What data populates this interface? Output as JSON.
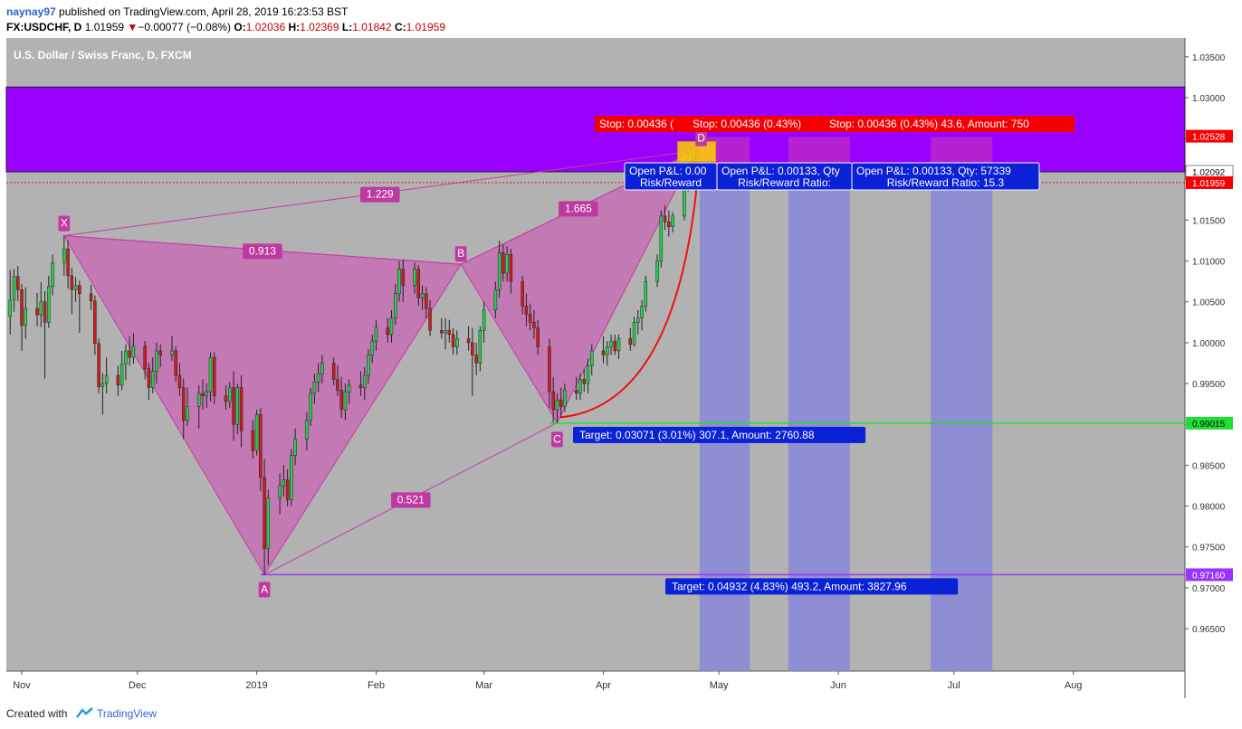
{
  "header": {
    "author": "naynay97",
    "published": "published on TradingView.com, April 28, 2019 16:23:53 BST",
    "symbol": "FX:USDCHF, D",
    "last": "1.01959",
    "change_arrow": "▼",
    "change": "−0.00077 (−0.08%)",
    "open_label": "O:",
    "open": "1.02036",
    "high_label": "H:",
    "high": "1.02369",
    "low_label": "L:",
    "low": "1.01842",
    "close_label": "C:",
    "close": "1.01959"
  },
  "footer": {
    "created_with": "Created with",
    "brand": "TradingView"
  },
  "colors": {
    "background": "#b2b2b2",
    "up": "#23d14a",
    "down": "#cc1d1d",
    "pattern_fill": "#c66fb3",
    "pattern_line": "#c83aa5",
    "zone": "#9900ff",
    "target_line": "#22dd33",
    "target_a": "#9a33ff",
    "projection": "#8a8ad6",
    "label_bg": "#bf3aa0",
    "stop_bg": "#f40000",
    "target_bg": "#0b21d6"
  },
  "chart_data": {
    "type": "candlestick",
    "title": "U.S. Dollar / Swiss Franc, D, FXCM",
    "ylim": [
      0.9598,
      1.0373
    ],
    "y_ticks": [
      "1.03500",
      "1.03000",
      "1.02500",
      "1.02000",
      "1.01500",
      "1.01000",
      "1.00500",
      "1.00000",
      "0.99500",
      "0.99000",
      "0.98500",
      "0.98000",
      "0.97500",
      "0.97000",
      "0.96500"
    ],
    "x_ticks": [
      {
        "label": "Nov",
        "date": "2018-11-01"
      },
      {
        "label": "Dec",
        "date": "2018-12-01"
      },
      {
        "label": "2019",
        "date": "2019-01-01"
      },
      {
        "label": "Feb",
        "date": "2019-02-01"
      },
      {
        "label": "Mar",
        "date": "2019-03-01"
      },
      {
        "label": "Apr",
        "date": "2019-04-01"
      },
      {
        "label": "May",
        "date": "2019-05-01"
      },
      {
        "label": "Jun",
        "date": "2019-06-01"
      },
      {
        "label": "Jul",
        "date": "2019-07-01"
      },
      {
        "label": "Aug",
        "date": "2019-08-01"
      }
    ],
    "xlim": [
      "2018-10-28",
      "2019-08-30"
    ],
    "price_badges": [
      {
        "value": "1.02528",
        "bg": "#f40000"
      },
      {
        "value": "1.02092",
        "bg": "#ffffff",
        "fg": "#111"
      },
      {
        "value": "1.01959",
        "bg": "#f40000"
      },
      {
        "value": "0.99015",
        "bg": "#22dd33",
        "fg": "#111"
      },
      {
        "value": "0.97160",
        "bg": "#9a33ff"
      }
    ],
    "supply_zone": {
      "from": 1.0313,
      "to": 1.02092
    },
    "current_price": 1.01959,
    "target_lines": [
      {
        "value": 0.99015,
        "color": "#22dd33",
        "from": "2019-03-18"
      },
      {
        "value": 0.9716,
        "color": "#9a33ff",
        "from": "2019-01-02"
      }
    ],
    "pattern": {
      "points": [
        {
          "label": "X",
          "date": "2018-11-12",
          "value": 1.0131
        },
        {
          "label": "A",
          "date": "2019-01-03",
          "value": 0.9716
        },
        {
          "label": "B",
          "date": "2019-02-23",
          "value": 1.0096
        },
        {
          "label": "C",
          "date": "2019-03-20",
          "value": 0.9902
        },
        {
          "label": "D",
          "date": "2019-04-25",
          "value": 1.0235
        }
      ],
      "ratios": [
        {
          "label": "1.229",
          "between": [
            "X",
            "D"
          ]
        },
        {
          "label": "0.913",
          "between": [
            "X",
            "B"
          ]
        },
        {
          "label": "1.665",
          "between": [
            "B",
            "D"
          ]
        },
        {
          "label": "0.521",
          "between": [
            "A",
            "C"
          ]
        }
      ]
    },
    "projections": [
      {
        "from": "2019-04-26",
        "to": "2019-05-09"
      },
      {
        "from": "2019-05-19",
        "to": "2019-06-04"
      },
      {
        "from": "2019-06-25",
        "to": "2019-07-11"
      }
    ],
    "stop_labels": [
      "Stop: 0.00436 (",
      "Stop: 0.00436 (0.43%)",
      "Stop: 0.00436 (0.43%) 43.6, Amount: 750"
    ],
    "open_labels": [
      {
        "line1": "Open P&L: 0.00",
        "line2": "Risk/Reward"
      },
      {
        "line1": "Open P&L: 0.00133, Qty",
        "line2": "Risk/Reward Ratio:"
      },
      {
        "line1": "Open P&L: 0.00133, Qty: 57339",
        "line2": "Risk/Reward Ratio: 15.3"
      }
    ],
    "target_labels": [
      "Target: 0.03071 (3.01%) 307.1, Amount: 2760.88",
      "Target: 0.04932 (4.83%) 493.2, Amount: 3827.96"
    ],
    "candles": [
      [
        "2018-10-29",
        1.0032,
        1.0089,
        1.001,
        1.0052
      ],
      [
        "2018-10-30",
        1.0052,
        1.009,
        1.0038,
        1.0081
      ],
      [
        "2018-10-31",
        1.0081,
        1.0094,
        1.0051,
        1.0065
      ],
      [
        "2018-11-01",
        1.0065,
        1.0072,
        0.999,
        1.0021
      ],
      [
        "2018-11-02",
        1.0021,
        1.0068,
        1.0005,
        1.0042
      ],
      [
        "2018-11-05",
        1.0042,
        1.0061,
        1.002,
        1.0034
      ],
      [
        "2018-11-06",
        1.0034,
        1.0074,
        1.0019,
        1.005
      ],
      [
        "2018-11-07",
        1.005,
        1.0063,
        0.9956,
        1.0025
      ],
      [
        "2018-11-08",
        1.0025,
        1.0082,
        1.0018,
        1.0069
      ],
      [
        "2018-11-09",
        1.0069,
        1.0108,
        1.0058,
        1.0098
      ],
      [
        "2018-11-12",
        1.0098,
        1.0131,
        1.0082,
        1.0115
      ],
      [
        "2018-11-13",
        1.0115,
        1.0125,
        1.0066,
        1.0082
      ],
      [
        "2018-11-14",
        1.0082,
        1.0092,
        1.0035,
        1.0065
      ],
      [
        "2018-11-15",
        1.0065,
        1.008,
        1.005,
        1.007
      ],
      [
        "2018-11-16",
        1.007,
        1.0076,
        1.0012,
        1.006
      ],
      [
        "2018-11-19",
        1.006,
        1.0071,
        1.004,
        1.0051
      ],
      [
        "2018-11-20",
        1.0051,
        1.0058,
        0.9985,
        0.9999
      ],
      [
        "2018-11-21",
        0.9999,
        1.0005,
        0.9938,
        0.9946
      ],
      [
        "2018-11-22",
        0.9946,
        0.9963,
        0.9912,
        0.995
      ],
      [
        "2018-11-23",
        0.995,
        0.9982,
        0.9938,
        0.996
      ],
      [
        "2018-11-26",
        0.996,
        0.9972,
        0.9935,
        0.9948
      ],
      [
        "2018-11-27",
        0.9948,
        0.999,
        0.9942,
        0.9974
      ],
      [
        "2018-11-28",
        0.9974,
        0.9998,
        0.9954,
        0.999
      ],
      [
        "2018-11-29",
        0.999,
        1.0008,
        0.9972,
        0.9982
      ],
      [
        "2018-11-30",
        0.9982,
        1.0012,
        0.9974,
        0.9996
      ],
      [
        "2018-12-03",
        0.9996,
        1.0002,
        0.9955,
        0.9968
      ],
      [
        "2018-12-04",
        0.9968,
        0.9975,
        0.993,
        0.9945
      ],
      [
        "2018-12-05",
        0.9945,
        0.9982,
        0.9938,
        0.9965
      ],
      [
        "2018-12-06",
        0.9965,
        1.0,
        0.995,
        0.999
      ],
      [
        "2018-12-07",
        0.999,
        0.9998,
        0.997,
        0.9985
      ],
      [
        "2018-12-10",
        0.9985,
        1.0008,
        0.9978,
        0.999
      ],
      [
        "2018-12-11",
        0.999,
        0.9995,
        0.9952,
        0.996
      ],
      [
        "2018-12-12",
        0.996,
        0.9975,
        0.9935,
        0.9945
      ],
      [
        "2018-12-13",
        0.9945,
        0.9956,
        0.9882,
        0.9905
      ],
      [
        "2018-12-14",
        0.9905,
        0.9945,
        0.9898,
        0.9922
      ],
      [
        "2018-12-17",
        0.9922,
        0.9948,
        0.9895,
        0.9938
      ],
      [
        "2018-12-18",
        0.9938,
        0.9955,
        0.9918,
        0.9935
      ],
      [
        "2018-12-19",
        0.9935,
        0.995,
        0.992,
        0.994
      ],
      [
        "2018-12-20",
        0.994,
        0.9988,
        0.9928,
        0.9982
      ],
      [
        "2018-12-21",
        0.9982,
        0.9988,
        0.9925,
        0.9935
      ],
      [
        "2018-12-24",
        0.9935,
        0.9948,
        0.9918,
        0.9928
      ],
      [
        "2018-12-25",
        0.9928,
        0.9952,
        0.992,
        0.9945
      ],
      [
        "2018-12-26",
        0.9945,
        0.9965,
        0.988,
        0.99
      ],
      [
        "2018-12-27",
        0.99,
        0.995,
        0.9888,
        0.9945
      ],
      [
        "2018-12-28",
        0.9945,
        0.996,
        0.9872,
        0.9892
      ],
      [
        "2018-12-31",
        0.9892,
        0.9905,
        0.9858,
        0.9868
      ],
      [
        "2019-01-01",
        0.9868,
        0.9918,
        0.9862,
        0.9912
      ],
      [
        "2019-01-02",
        0.9912,
        0.992,
        0.9818,
        0.9835
      ],
      [
        "2019-01-03",
        0.9835,
        0.9858,
        0.9716,
        0.9748
      ],
      [
        "2019-01-04",
        0.9748,
        0.982,
        0.9728,
        0.981
      ],
      [
        "2019-01-07",
        0.981,
        0.984,
        0.979,
        0.9825
      ],
      [
        "2019-01-08",
        0.9825,
        0.985,
        0.9812,
        0.9832
      ],
      [
        "2019-01-09",
        0.9832,
        0.9845,
        0.98,
        0.9808
      ],
      [
        "2019-01-10",
        0.9808,
        0.987,
        0.98,
        0.9862
      ],
      [
        "2019-01-11",
        0.9862,
        0.9895,
        0.985,
        0.9882
      ],
      [
        "2019-01-14",
        0.9882,
        0.9915,
        0.9868,
        0.9905
      ],
      [
        "2019-01-15",
        0.9905,
        0.9945,
        0.9898,
        0.9938
      ],
      [
        "2019-01-16",
        0.9938,
        0.9962,
        0.9925,
        0.9952
      ],
      [
        "2019-01-17",
        0.9952,
        0.9975,
        0.994,
        0.9962
      ],
      [
        "2019-01-18",
        0.9962,
        0.9985,
        0.995,
        0.9975
      ],
      [
        "2019-01-21",
        0.9975,
        0.9982,
        0.9948,
        0.9955
      ],
      [
        "2019-01-22",
        0.9955,
        0.9972,
        0.9935,
        0.9942
      ],
      [
        "2019-01-23",
        0.9942,
        0.9958,
        0.9908,
        0.9918
      ],
      [
        "2019-01-24",
        0.9918,
        0.995,
        0.9905,
        0.994
      ],
      [
        "2019-01-25",
        0.994,
        0.9955,
        0.9925,
        0.9948
      ],
      [
        "2019-01-28",
        0.9948,
        0.9965,
        0.9935,
        0.9945
      ],
      [
        "2019-01-29",
        0.9945,
        0.997,
        0.993,
        0.996
      ],
      [
        "2019-01-30",
        0.996,
        0.9992,
        0.995,
        0.9985
      ],
      [
        "2019-01-31",
        0.9985,
        1.001,
        0.9975,
        1.0002
      ],
      [
        "2019-02-01",
        1.0002,
        1.0028,
        0.999,
        1.0018
      ],
      [
        "2019-02-04",
        1.0018,
        1.003,
        1.0,
        1.001
      ],
      [
        "2019-02-05",
        1.001,
        1.004,
        1.0,
        1.003
      ],
      [
        "2019-02-06",
        1.003,
        1.0072,
        1.0022,
        1.006
      ],
      [
        "2019-02-07",
        1.006,
        1.01,
        1.005,
        1.009
      ],
      [
        "2019-02-08",
        1.009,
        1.0102,
        1.005,
        1.007
      ],
      [
        "2019-02-11",
        1.007,
        1.0098,
        1.006,
        1.009
      ],
      [
        "2019-02-12",
        1.009,
        1.0095,
        1.0045,
        1.0055
      ],
      [
        "2019-02-13",
        1.0055,
        1.007,
        1.004,
        1.006
      ],
      [
        "2019-02-14",
        1.006,
        1.0068,
        1.003,
        1.0042
      ],
      [
        "2019-02-15",
        1.0042,
        1.0052,
        1.0008,
        1.0015
      ],
      [
        "2019-02-18",
        1.0015,
        1.003,
        1.0005,
        1.0012
      ],
      [
        "2019-02-19",
        1.0012,
        1.003,
        0.9992,
        1.0015
      ],
      [
        "2019-02-20",
        1.0015,
        1.0028,
        1.0,
        1.001
      ],
      [
        "2019-02-21",
        1.001,
        1.0018,
        0.9985,
        0.9995
      ],
      [
        "2019-02-22",
        0.9995,
        1.0015,
        0.9985,
        1.0005
      ],
      [
        "2019-02-25",
        1.0005,
        1.002,
        0.999,
        1.0
      ],
      [
        "2019-02-26",
        1.0,
        1.0018,
        0.9935,
        0.9985
      ],
      [
        "2019-02-27",
        0.9985,
        1.0,
        0.996,
        0.9975
      ],
      [
        "2019-02-28",
        0.9975,
        1.002,
        0.9965,
        1.0015
      ],
      [
        "2019-03-01",
        1.0015,
        1.005,
        1.0,
        1.004
      ],
      [
        "2019-03-04",
        1.004,
        1.0075,
        1.003,
        1.0065
      ],
      [
        "2019-03-05",
        1.0065,
        1.0125,
        1.0055,
        1.011
      ],
      [
        "2019-03-06",
        1.011,
        1.012,
        1.0075,
        1.0085
      ],
      [
        "2019-03-07",
        1.0085,
        1.0118,
        1.0075,
        1.0108
      ],
      [
        "2019-03-08",
        1.0108,
        1.0115,
        1.006,
        1.0075
      ],
      [
        "2019-03-11",
        1.0075,
        1.0082,
        1.0035,
        1.0045
      ],
      [
        "2019-03-12",
        1.0045,
        1.006,
        1.002,
        1.0035
      ],
      [
        "2019-03-13",
        1.0035,
        1.0048,
        1.0015,
        1.0025
      ],
      [
        "2019-03-14",
        1.0025,
        1.004,
        1.0005,
        1.0018
      ],
      [
        "2019-03-15",
        1.0018,
        1.0028,
        0.9985,
        0.9995
      ],
      [
        "2019-03-18",
        0.9995,
        1.0005,
        0.992,
        0.994
      ],
      [
        "2019-03-19",
        0.994,
        0.9958,
        0.9902,
        0.9918
      ],
      [
        "2019-03-20",
        0.9918,
        0.9938,
        0.9902,
        0.993
      ],
      [
        "2019-03-21",
        0.993,
        0.9945,
        0.9908,
        0.9922
      ],
      [
        "2019-03-22",
        0.9922,
        0.995,
        0.9915,
        0.9942
      ],
      [
        "2019-03-25",
        0.9942,
        0.9958,
        0.993,
        0.9938
      ],
      [
        "2019-03-26",
        0.9938,
        0.9962,
        0.993,
        0.9955
      ],
      [
        "2019-03-27",
        0.9955,
        0.9968,
        0.994,
        0.995
      ],
      [
        "2019-03-28",
        0.995,
        0.998,
        0.9938,
        0.9972
      ],
      [
        "2019-03-29",
        0.9972,
        0.9998,
        0.996,
        0.999
      ],
      [
        "2019-04-01",
        0.999,
        1.0008,
        0.9975,
        0.9985
      ],
      [
        "2019-04-02",
        0.9985,
        1.0002,
        0.9972,
        0.9995
      ],
      [
        "2019-04-03",
        0.9995,
        1.001,
        0.9985,
        1.0002
      ],
      [
        "2019-04-04",
        1.0002,
        1.001,
        0.9985,
        0.999
      ],
      [
        "2019-04-05",
        0.999,
        1.001,
        0.998,
        1.0005
      ],
      [
        "2019-04-08",
        1.0005,
        1.0018,
        0.999,
        0.9998
      ],
      [
        "2019-04-09",
        0.9998,
        1.0032,
        0.9995,
        1.0025
      ],
      [
        "2019-04-10",
        1.0025,
        1.004,
        1.001,
        1.003
      ],
      [
        "2019-04-11",
        1.003,
        1.0052,
        1.0015,
        1.0045
      ],
      [
        "2019-04-12",
        1.0045,
        1.0082,
        1.0038,
        1.0075
      ],
      [
        "2019-04-15",
        1.0075,
        1.0108,
        1.0068,
        1.01
      ],
      [
        "2019-04-16",
        1.01,
        1.0162,
        1.0092,
        1.0155
      ],
      [
        "2019-04-17",
        1.0155,
        1.0168,
        1.0138,
        1.0148
      ],
      [
        "2019-04-18",
        1.0148,
        1.0162,
        1.013,
        1.0142
      ],
      [
        "2019-04-19",
        1.0142,
        1.016,
        1.0135,
        1.0155
      ],
      [
        "2019-04-22",
        1.0155,
        1.0198,
        1.015,
        1.019
      ],
      [
        "2019-04-23",
        1.019,
        1.0235,
        1.0185,
        1.0225
      ],
      [
        "2019-04-24",
        1.0225,
        1.0237,
        1.019,
        1.0204
      ],
      [
        "2019-04-25",
        1.0204,
        1.0237,
        1.0184,
        1.0196
      ]
    ]
  }
}
